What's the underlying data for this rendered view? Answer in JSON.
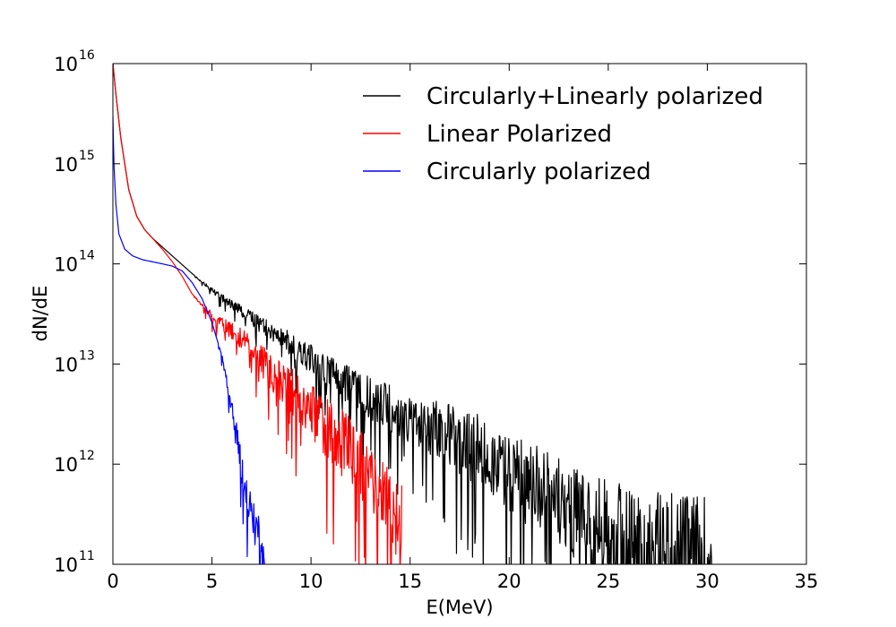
{
  "chart_data": {
    "type": "line",
    "title": "",
    "xlabel": "E(MeV)",
    "ylabel": "dN/dE",
    "yscale": "log",
    "xlim": [
      0,
      35
    ],
    "ylim": [
      100000000000.0,
      1e+16
    ],
    "x_ticks": [
      "0",
      "5",
      "10",
      "15",
      "20",
      "25",
      "30",
      "35"
    ],
    "y_ticks": [
      {
        "base": "10",
        "exp": "11"
      },
      {
        "base": "10",
        "exp": "12"
      },
      {
        "base": "10",
        "exp": "13"
      },
      {
        "base": "10",
        "exp": "14"
      },
      {
        "base": "10",
        "exp": "15"
      },
      {
        "base": "10",
        "exp": "16"
      }
    ],
    "legend_position": "top-right",
    "series": [
      {
        "name": "Circularly+Linearly polarized",
        "color": "#000000",
        "noise_start": 4,
        "noise_growth": 0.025,
        "x": [
          0,
          0.15,
          0.4,
          0.8,
          1.2,
          1.6,
          2,
          3,
          4,
          5,
          6,
          7,
          8,
          9,
          10,
          11,
          12,
          13,
          14,
          15,
          16,
          17,
          18,
          19,
          20,
          21,
          22,
          23,
          24,
          25,
          26,
          27,
          28,
          29,
          30,
          30.3
        ],
        "y": [
          1e+16,
          5000000000000000.0,
          1800000000000000.0,
          550000000000000.0,
          300000000000000.0,
          220000000000000.0,
          180000000000000.0,
          120000000000000.0,
          80000000000000.0,
          55000000000000.0,
          40000000000000.0,
          30000000000000.0,
          22000000000000.0,
          16500000000000.0,
          12000000000000.0,
          9000000000000.0,
          6500000000000.0,
          5000000000000.0,
          4000000000000.0,
          3300000000000.0,
          2800000000000.0,
          2300000000000.0,
          1800000000000.0,
          1400000000000.0,
          1000000000000.0,
          750000000000.0,
          580000000000.0,
          450000000000.0,
          350000000000.0,
          280000000000.0,
          230000000000.0,
          200000000000.0,
          180000000000.0,
          160000000000.0,
          150000000000.0,
          140000000000.0
        ]
      },
      {
        "name": "Linear Polarized",
        "color": "#ff0000",
        "noise_start": 4,
        "noise_growth": 0.045,
        "x": [
          0,
          0.15,
          0.4,
          0.8,
          1.2,
          1.6,
          2,
          2.5,
          3,
          3.5,
          4,
          5,
          6,
          7,
          8,
          9,
          10,
          11,
          12,
          13,
          14,
          14.6
        ],
        "y": [
          1e+16,
          5000000000000000.0,
          1800000000000000.0,
          550000000000000.0,
          300000000000000.0,
          220000000000000.0,
          180000000000000.0,
          140000000000000.0,
          105000000000000.0,
          75000000000000.0,
          50000000000000.0,
          31000000000000.0,
          22000000000000.0,
          15000000000000.0,
          9000000000000.0,
          6000000000000.0,
          3800000000000.0,
          2500000000000.0,
          1500000000000.0,
          900000000000.0,
          500000000000.0,
          250000000000.0
        ]
      },
      {
        "name": "Circularly polarized",
        "color": "#0000ff",
        "noise_start": 5.2,
        "noise_growth": 0.11,
        "x": [
          0,
          0.05,
          0.15,
          0.3,
          0.6,
          1,
          1.5,
          2,
          2.5,
          3,
          3.5,
          4,
          4.5,
          5,
          5.5,
          6,
          6.3,
          6.6,
          7,
          7.4,
          7.7
        ],
        "y": [
          3000000000000000.0,
          1000000000000000.0,
          400000000000000.0,
          200000000000000.0,
          140000000000000.0,
          120000000000000.0,
          110000000000000.0,
          105000000000000.0,
          100000000000000.0,
          95000000000000.0,
          85000000000000.0,
          65000000000000.0,
          45000000000000.0,
          26000000000000.0,
          12000000000000.0,
          4000000000000.0,
          1800000000000.0,
          700000000000.0,
          350000000000.0,
          200000000000.0,
          130000000000.0
        ]
      }
    ]
  }
}
